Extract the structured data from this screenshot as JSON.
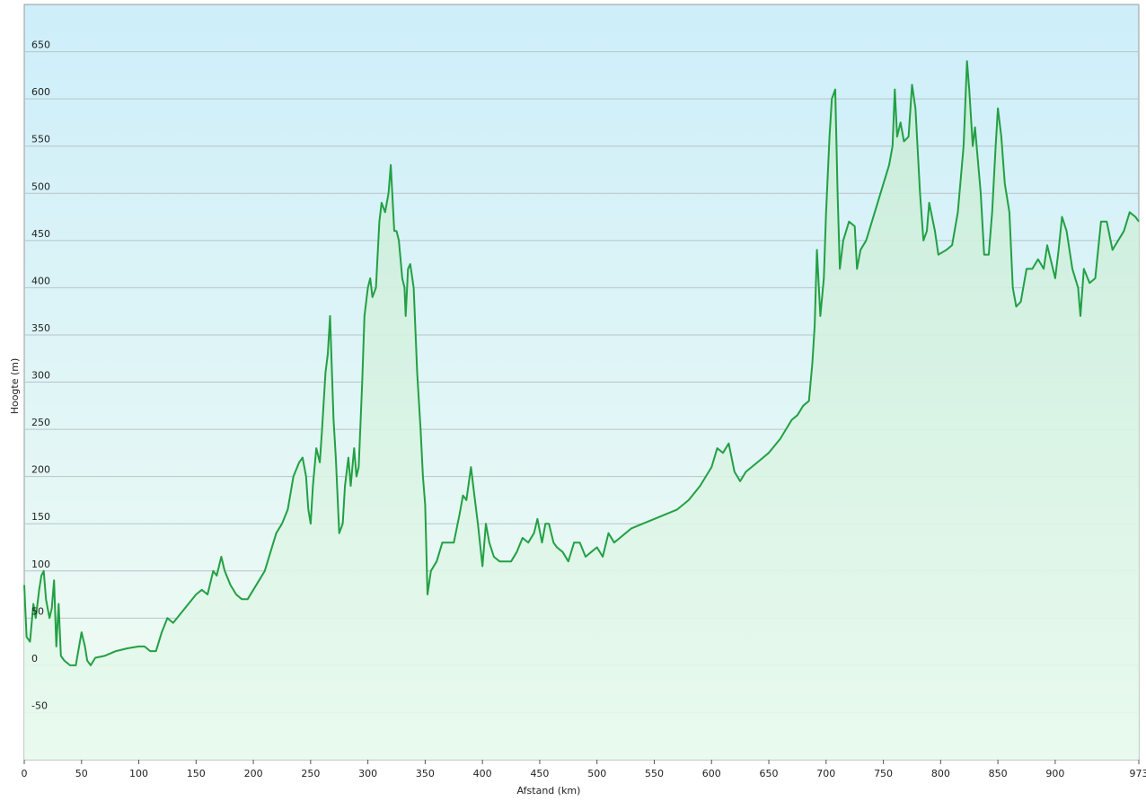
{
  "chart_data": {
    "type": "area",
    "x_label": "Afstand (km)",
    "y_label": "Hoogte (m)",
    "color": "#22a044",
    "x": [
      0,
      2,
      5,
      8,
      10,
      13,
      15,
      17,
      19,
      22,
      24,
      26,
      28,
      30,
      32,
      35,
      40,
      45,
      50,
      53,
      55,
      58,
      62,
      70,
      80,
      90,
      100,
      105,
      110,
      115,
      120,
      125,
      130,
      140,
      150,
      155,
      160,
      165,
      168,
      172,
      175,
      180,
      185,
      190,
      195,
      200,
      205,
      210,
      215,
      220,
      225,
      230,
      235,
      240,
      243,
      246,
      248,
      250,
      252,
      255,
      258,
      260,
      263,
      265,
      267,
      270,
      272,
      275,
      278,
      280,
      283,
      285,
      288,
      290,
      292,
      295,
      297,
      300,
      302,
      304,
      307,
      310,
      312,
      315,
      318,
      320,
      323,
      325,
      327,
      330,
      332,
      333,
      335,
      337,
      340,
      343,
      346,
      348,
      350,
      352,
      355,
      360,
      365,
      370,
      375,
      380,
      383,
      386,
      390,
      393,
      396,
      400,
      403,
      406,
      410,
      415,
      420,
      425,
      430,
      435,
      440,
      445,
      448,
      452,
      455,
      458,
      462,
      465,
      470,
      475,
      480,
      485,
      490,
      495,
      500,
      505,
      510,
      515,
      520,
      525,
      530,
      540,
      550,
      560,
      570,
      580,
      590,
      600,
      605,
      610,
      615,
      620,
      625,
      630,
      640,
      650,
      660,
      670,
      675,
      680,
      685,
      688,
      690,
      692,
      695,
      698,
      700,
      703,
      705,
      708,
      710,
      712,
      715,
      720,
      725,
      727,
      730,
      735,
      740,
      745,
      750,
      755,
      758,
      760,
      762,
      765,
      768,
      772,
      775,
      778,
      782,
      785,
      788,
      790,
      795,
      798,
      805,
      810,
      815,
      820,
      823,
      825,
      828,
      830,
      835,
      838,
      842,
      845,
      848,
      850,
      853,
      856,
      860,
      863,
      866,
      870,
      875,
      880,
      885,
      890,
      893,
      896,
      900,
      903,
      906,
      910,
      915,
      920,
      922,
      925,
      930,
      935,
      940,
      945,
      950,
      955,
      960,
      965,
      970,
      973
    ],
    "values": [
      85,
      30,
      25,
      65,
      50,
      80,
      95,
      100,
      70,
      50,
      60,
      90,
      20,
      65,
      10,
      5,
      0,
      0,
      35,
      20,
      5,
      0,
      8,
      10,
      15,
      18,
      20,
      20,
      15,
      15,
      35,
      50,
      45,
      60,
      75,
      80,
      75,
      100,
      95,
      115,
      100,
      85,
      75,
      70,
      70,
      80,
      90,
      100,
      120,
      140,
      150,
      165,
      200,
      215,
      220,
      200,
      165,
      150,
      190,
      230,
      215,
      250,
      310,
      330,
      370,
      260,
      220,
      140,
      150,
      190,
      220,
      190,
      230,
      200,
      210,
      300,
      370,
      400,
      410,
      390,
      400,
      470,
      490,
      480,
      500,
      530,
      460,
      460,
      450,
      410,
      400,
      370,
      420,
      425,
      400,
      310,
      250,
      200,
      170,
      75,
      100,
      110,
      130,
      130,
      130,
      160,
      180,
      175,
      210,
      180,
      150,
      105,
      150,
      130,
      115,
      110,
      110,
      110,
      120,
      135,
      130,
      140,
      155,
      130,
      150,
      150,
      130,
      125,
      120,
      110,
      130,
      130,
      115,
      120,
      125,
      115,
      140,
      130,
      135,
      140,
      145,
      150,
      155,
      160,
      165,
      175,
      190,
      210,
      230,
      225,
      235,
      205,
      195,
      205,
      215,
      225,
      240,
      260,
      265,
      275,
      280,
      320,
      360,
      440,
      370,
      410,
      480,
      560,
      600,
      610,
      500,
      420,
      450,
      470,
      465,
      420,
      440,
      450,
      470,
      490,
      510,
      530,
      550,
      610,
      560,
      575,
      555,
      560,
      615,
      590,
      500,
      450,
      460,
      490,
      460,
      435,
      440,
      445,
      480,
      550,
      640,
      610,
      550,
      570,
      500,
      435,
      435,
      480,
      550,
      590,
      560,
      510,
      480,
      400,
      380,
      385,
      420,
      420,
      430,
      420,
      445,
      430,
      410,
      440,
      475,
      460,
      420,
      400,
      370,
      420,
      405,
      410,
      470,
      470,
      440,
      450,
      460,
      480,
      475,
      470
    ],
    "xlim": [
      0,
      973
    ],
    "xticks": [
      0,
      50,
      100,
      150,
      200,
      250,
      300,
      350,
      400,
      450,
      500,
      550,
      600,
      650,
      700,
      750,
      800,
      850,
      900,
      973
    ],
    "ylim": [
      -100,
      700
    ],
    "yticks": [
      -50,
      0,
      50,
      100,
      150,
      200,
      250,
      300,
      350,
      400,
      450,
      500,
      550,
      600,
      650
    ],
    "grid": true
  }
}
